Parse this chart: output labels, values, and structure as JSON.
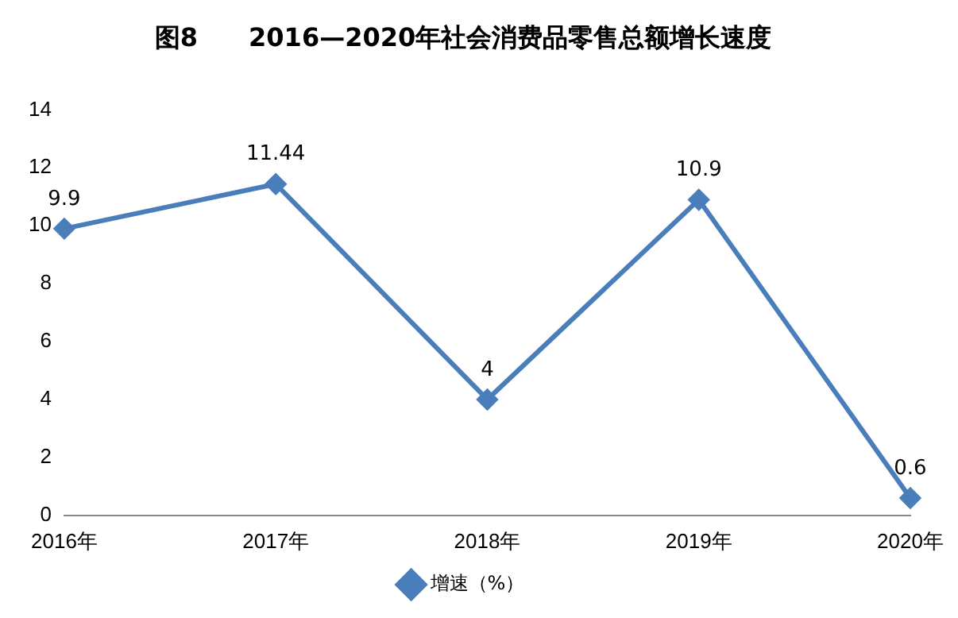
{
  "chart_data": {
    "type": "line",
    "title": "图8　　2016—2020年社会消费品零售总额增长速度",
    "categories": [
      "2016年",
      "2017年",
      "2018年",
      "2019年",
      "2020年"
    ],
    "series": [
      {
        "name": "增速（%）",
        "color": "#4a7ebb",
        "values": [
          9.9,
          11.44,
          4,
          10.9,
          0.6
        ]
      }
    ],
    "ylim": [
      0,
      14
    ],
    "yticks": [
      0,
      2,
      4,
      6,
      8,
      10,
      12,
      14
    ],
    "grid": false,
    "legend": "bottom",
    "marker": "diamond",
    "line_style": "solid",
    "data_labels": true
  }
}
